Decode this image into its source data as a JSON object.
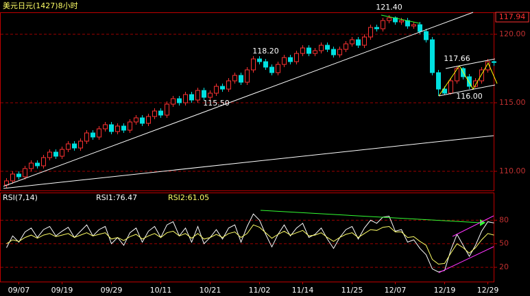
{
  "chart_data": [
    {
      "type": "candlestick",
      "title": "美元日元(1427)8小时",
      "categories": [
        null,
        null,
        "09/07",
        null,
        null,
        null,
        null,
        null,
        null,
        "09/19",
        null,
        null,
        null,
        null,
        null,
        null,
        null,
        "09/29",
        null,
        null,
        null,
        null,
        null,
        null,
        null,
        "10/11",
        null,
        null,
        null,
        null,
        null,
        null,
        null,
        "10/21",
        null,
        null,
        null,
        null,
        null,
        null,
        null,
        "11/02",
        null,
        null,
        null,
        null,
        null,
        null,
        "11/14",
        null,
        null,
        null,
        null,
        null,
        null,
        null,
        "11/25",
        null,
        null,
        null,
        null,
        null,
        null,
        "12/07",
        null,
        null,
        null,
        null,
        null,
        null,
        null,
        "12/19",
        null,
        null,
        null,
        null,
        null,
        null,
        "12/29",
        null
      ],
      "open": [
        109.0,
        109.3,
        109.8,
        109.6,
        110.2,
        110.6,
        110.4,
        111.0,
        111.4,
        111.1,
        111.6,
        112.0,
        111.7,
        112.2,
        112.8,
        112.5,
        113.1,
        113.4,
        112.9,
        113.3,
        113.0,
        113.6,
        113.9,
        113.5,
        114.0,
        114.4,
        114.1,
        114.9,
        115.3,
        115.0,
        115.6,
        115.2,
        115.9,
        115.4,
        115.7,
        116.2,
        116.0,
        116.6,
        117.0,
        116.5,
        117.4,
        118.2,
        118.0,
        117.6,
        117.2,
        117.8,
        118.3,
        118.0,
        118.6,
        119.0,
        118.6,
        118.8,
        119.2,
        118.9,
        118.5,
        118.9,
        119.3,
        119.6,
        119.2,
        119.8,
        120.5,
        120.4,
        121.0,
        121.2,
        120.9,
        121.0,
        120.6,
        120.7,
        120.2,
        119.6,
        117.2,
        116.0,
        115.7,
        116.6,
        117.5,
        116.9,
        116.2,
        116.6,
        117.4,
        118.0
      ],
      "high": [
        109.5,
        110.0,
        110.0,
        110.4,
        110.8,
        110.8,
        111.2,
        111.6,
        111.6,
        111.8,
        112.2,
        112.2,
        112.4,
        113.0,
        113.0,
        113.3,
        113.6,
        113.6,
        113.5,
        113.5,
        113.8,
        114.1,
        114.1,
        114.2,
        114.6,
        114.6,
        115.1,
        115.5,
        115.5,
        115.8,
        115.8,
        116.1,
        116.1,
        115.9,
        116.4,
        116.4,
        116.8,
        117.2,
        117.2,
        117.6,
        118.4,
        118.4,
        118.2,
        117.8,
        118.0,
        118.5,
        118.5,
        118.8,
        119.2,
        119.2,
        119.0,
        119.4,
        119.4,
        119.1,
        119.1,
        119.5,
        119.8,
        119.8,
        120.0,
        120.7,
        120.7,
        121.2,
        121.4,
        121.3,
        121.2,
        121.2,
        120.9,
        120.9,
        120.4,
        119.8,
        117.4,
        116.2,
        116.8,
        117.66,
        117.6,
        117.1,
        116.8,
        117.6,
        118.2,
        118.1
      ],
      "low": [
        108.8,
        109.1,
        109.4,
        109.4,
        110.0,
        110.2,
        110.2,
        110.8,
        110.9,
        110.9,
        111.4,
        111.5,
        111.5,
        112.0,
        112.3,
        112.3,
        112.9,
        112.7,
        112.7,
        112.8,
        112.8,
        113.4,
        113.3,
        113.3,
        113.8,
        113.9,
        113.9,
        114.7,
        114.8,
        114.8,
        115.0,
        115.0,
        115.2,
        115.2,
        115.5,
        115.8,
        115.8,
        116.4,
        116.3,
        116.3,
        117.2,
        117.8,
        117.4,
        117.0,
        117.0,
        117.6,
        117.8,
        117.8,
        118.4,
        118.4,
        118.4,
        118.6,
        118.7,
        118.3,
        118.3,
        118.7,
        119.1,
        119.0,
        119.0,
        119.6,
        120.2,
        120.2,
        120.8,
        120.7,
        120.7,
        120.4,
        120.4,
        120.0,
        119.4,
        117.0,
        115.5,
        115.6,
        115.6,
        116.4,
        116.7,
        116.0,
        116.1,
        116.4,
        117.2,
        117.7
      ],
      "close": [
        109.3,
        109.8,
        109.6,
        110.2,
        110.6,
        110.4,
        111.0,
        111.4,
        111.1,
        111.6,
        112.0,
        111.7,
        112.2,
        112.8,
        112.5,
        113.1,
        113.4,
        112.9,
        113.3,
        113.0,
        113.6,
        113.9,
        113.5,
        114.0,
        114.4,
        114.1,
        114.9,
        115.3,
        115.0,
        115.6,
        115.2,
        115.9,
        115.4,
        115.7,
        116.2,
        116.0,
        116.6,
        117.0,
        116.5,
        117.4,
        118.2,
        118.0,
        117.6,
        117.2,
        117.8,
        118.3,
        118.0,
        118.6,
        119.0,
        118.6,
        118.8,
        119.2,
        118.9,
        118.5,
        118.9,
        119.3,
        119.6,
        119.2,
        119.8,
        120.5,
        120.4,
        121.0,
        121.2,
        120.9,
        121.0,
        120.6,
        120.7,
        120.2,
        119.6,
        117.2,
        116.0,
        115.7,
        116.6,
        117.5,
        116.9,
        116.2,
        116.6,
        117.4,
        118.0,
        117.94
      ],
      "up_color": "#ff3232",
      "down_color": "#00e0e0",
      "ylim": [
        108.6,
        121.6
      ],
      "yticks": [
        {
          "value": 110,
          "label": "110.00"
        },
        {
          "value": 115,
          "label": "115.00"
        },
        {
          "value": 120,
          "label": "120.00"
        }
      ],
      "grid": true,
      "annotations": [
        {
          "value": 121.4,
          "label": "121.40",
          "at": "high"
        },
        {
          "value": 117.66,
          "label": "117.66",
          "at": "high"
        },
        {
          "value": 118.2,
          "label": "118.20",
          "at": "high"
        },
        {
          "value": 115.5,
          "label": "115.50",
          "at": "low"
        },
        {
          "value": 116.0,
          "label": "116.00",
          "at": "low"
        }
      ]
    },
    {
      "type": "line",
      "title": "RSI(7,14)",
      "series": [
        {
          "name": "RSI1:76.47",
          "color": "#ffffff",
          "values": [
            45,
            60,
            52,
            65,
            70,
            58,
            68,
            72,
            60,
            66,
            71,
            58,
            66,
            74,
            60,
            68,
            72,
            50,
            58,
            48,
            64,
            70,
            52,
            66,
            72,
            58,
            74,
            78,
            60,
            70,
            52,
            72,
            50,
            58,
            68,
            56,
            70,
            74,
            52,
            72,
            88,
            80,
            62,
            46,
            62,
            74,
            60,
            70,
            76,
            58,
            62,
            70,
            56,
            44,
            58,
            68,
            72,
            56,
            70,
            80,
            76,
            84,
            85,
            66,
            68,
            52,
            55,
            44,
            36,
            18,
            14,
            16,
            42,
            62,
            48,
            34,
            48,
            66,
            78,
            76.47
          ]
        },
        {
          "name": "RSI2:61.05",
          "color": "#ffff66",
          "values": [
            50,
            55,
            53,
            58,
            61,
            57,
            61,
            63,
            59,
            61,
            63,
            58,
            61,
            64,
            60,
            62,
            64,
            56,
            58,
            54,
            59,
            62,
            56,
            60,
            63,
            58,
            64,
            66,
            60,
            63,
            57,
            63,
            56,
            58,
            62,
            58,
            63,
            65,
            58,
            63,
            74,
            71,
            64,
            57,
            62,
            66,
            61,
            64,
            67,
            60,
            61,
            64,
            58,
            53,
            58,
            62,
            64,
            58,
            63,
            68,
            67,
            71,
            72,
            65,
            65,
            58,
            59,
            53,
            48,
            30,
            24,
            25,
            38,
            50,
            45,
            38,
            45,
            55,
            63,
            61.05
          ]
        }
      ],
      "ylim": [
        7,
        103
      ],
      "yticks": [
        20,
        50,
        80
      ],
      "grid": true
    }
  ]
}
